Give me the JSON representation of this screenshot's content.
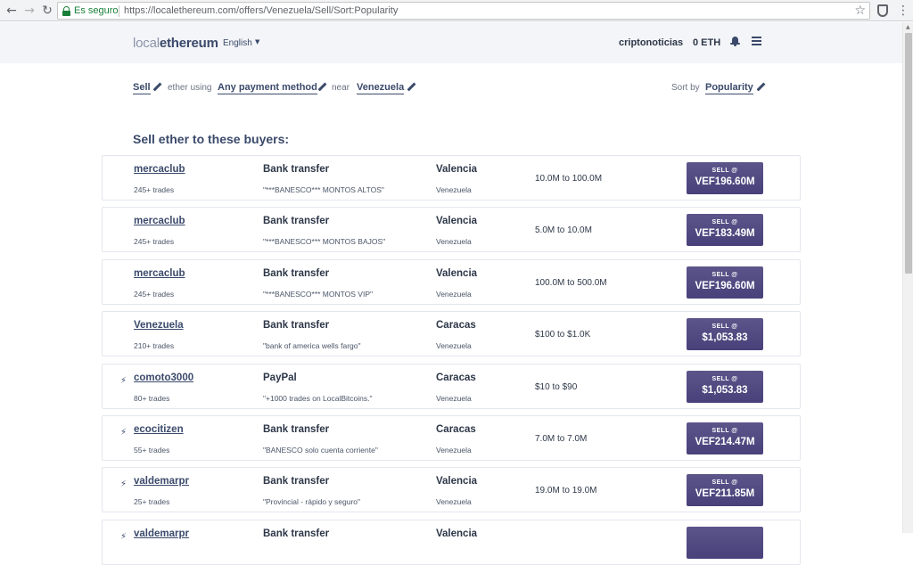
{
  "browser": {
    "secure_label": "Es seguro",
    "url": "https://localethereum.com/offers/Venezuela/Sell/Sort:Popularity",
    "back_glyph": "←",
    "forward_glyph": "→",
    "reload_glyph": "↻",
    "star_glyph": "☆",
    "menu_glyph": "⋮"
  },
  "header": {
    "logo_light": "local",
    "logo_bold": "ethereum",
    "language": "English",
    "language_caret": "▼",
    "username": "criptonoticias",
    "balance": "0 ETH"
  },
  "filters": {
    "action": "Sell",
    "ether_using": "ether using",
    "payment_method": "Any payment method",
    "near": "near",
    "location": "Venezuela",
    "sort_by": "Sort by",
    "sort_value": "Popularity"
  },
  "section_title": "Sell ether to these buyers:",
  "sell_label": "SELL @",
  "bolt_glyph": "⚡",
  "offers": [
    {
      "trader": "mercaclub",
      "trades": "245+ trades",
      "method": "Bank transfer",
      "note": "\"***BANESCO*** MONTOS ALTOS\"",
      "city": "Valencia",
      "country": "Venezuela",
      "limits": "10.0M to 100.0M",
      "price": "VEF196.60M",
      "fast": false
    },
    {
      "trader": "mercaclub",
      "trades": "245+ trades",
      "method": "Bank transfer",
      "note": "\"***BANESCO*** MONTOS BAJOS\"",
      "city": "Valencia",
      "country": "Venezuela",
      "limits": "5.0M to 10.0M",
      "price": "VEF183.49M",
      "fast": false
    },
    {
      "trader": "mercaclub",
      "trades": "245+ trades",
      "method": "Bank transfer",
      "note": "\"***BANESCO*** MONTOS VIP\"",
      "city": "Valencia",
      "country": "Venezuela",
      "limits": "100.0M to 500.0M",
      "price": "VEF196.60M",
      "fast": false
    },
    {
      "trader": "Venezuela",
      "trades": "210+ trades",
      "method": "Bank transfer",
      "note": "\"bank of america wells fargo\"",
      "city": "Caracas",
      "country": "Venezuela",
      "limits": "$100 to $1.0K",
      "price": "$1,053.83",
      "fast": false
    },
    {
      "trader": "comoto3000",
      "trades": "80+ trades",
      "method": "PayPal",
      "note": "\"+1000 trades on LocalBitcoins.\"",
      "city": "Caracas",
      "country": "Venezuela",
      "limits": "$10 to $90",
      "price": "$1,053.83",
      "fast": true
    },
    {
      "trader": "ecocitizen",
      "trades": "55+ trades",
      "method": "Bank transfer",
      "note": "\"BANESCO solo cuenta corriente\"",
      "city": "Caracas",
      "country": "Venezuela",
      "limits": "7.0M to 7.0M",
      "price": "VEF214.47M",
      "fast": true
    },
    {
      "trader": "valdemarpr",
      "trades": "25+ trades",
      "method": "Bank transfer",
      "note": "\"Provincial - rápido y seguro\"",
      "city": "Valencia",
      "country": "Venezuela",
      "limits": "19.0M to 19.0M",
      "price": "VEF211.85M",
      "fast": true
    },
    {
      "trader": "valdemarpr",
      "trades": "",
      "method": "Bank transfer",
      "note": "",
      "city": "Valencia",
      "country": "",
      "limits": "",
      "price": "",
      "fast": true
    }
  ]
}
